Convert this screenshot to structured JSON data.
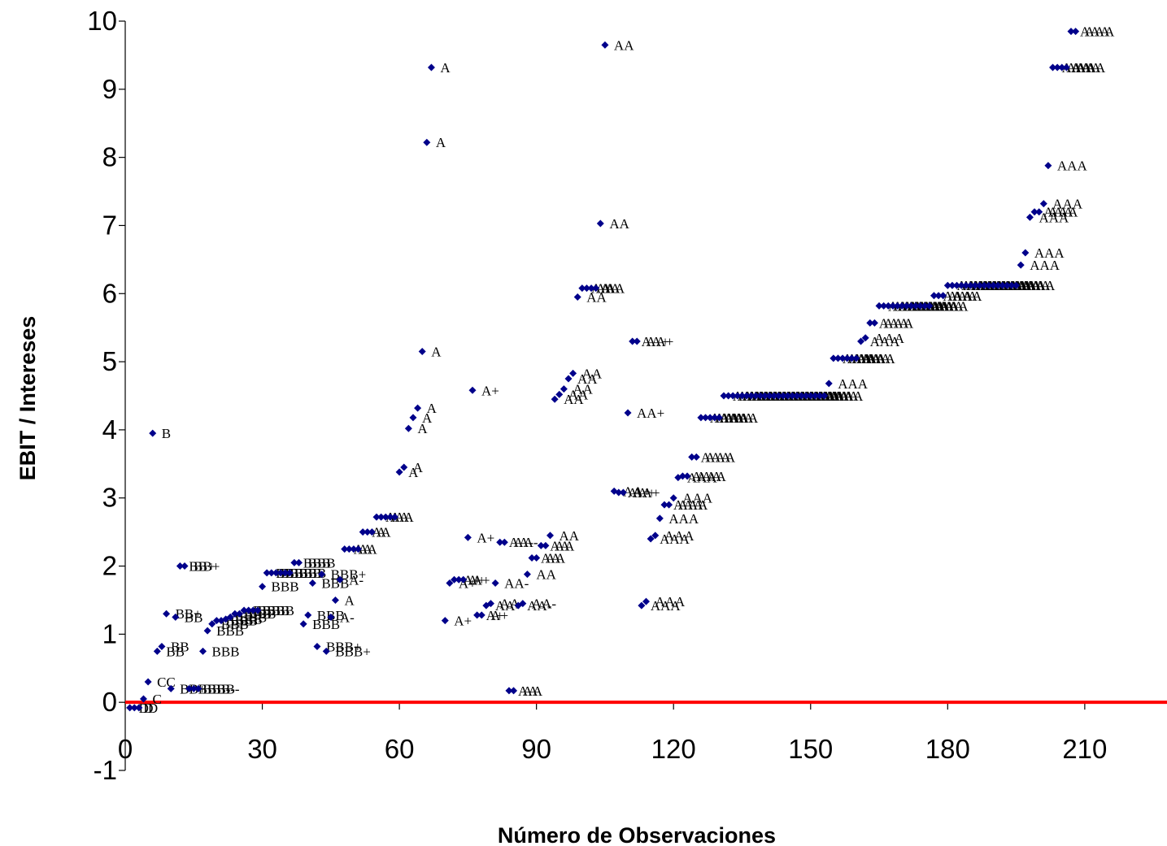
{
  "chart_data": {
    "type": "scatter",
    "title": "",
    "xlabel": "Número de Observaciones",
    "ylabel": "EBIT / Intereses",
    "xlim": [
      0,
      228
    ],
    "ylim": [
      -1,
      10
    ],
    "xticks": [
      0,
      30,
      60,
      90,
      120,
      150,
      180,
      210
    ],
    "yticks": [
      -1,
      0,
      1,
      2,
      3,
      4,
      5,
      6,
      7,
      8,
      9,
      10
    ],
    "grid": false,
    "legend": "none",
    "marker_color": "#00008B",
    "zero_line_color": "#FF0000",
    "points": [
      {
        "x": 1,
        "y": -0.08,
        "label": "D"
      },
      {
        "x": 2,
        "y": -0.08,
        "label": "D"
      },
      {
        "x": 3,
        "y": -0.08,
        "label": "D"
      },
      {
        "x": 4,
        "y": 0.05,
        "label": "C"
      },
      {
        "x": 5,
        "y": 0.3,
        "label": "CC"
      },
      {
        "x": 6,
        "y": 3.95,
        "label": "B"
      },
      {
        "x": 7,
        "y": 0.75,
        "label": "BB"
      },
      {
        "x": 8,
        "y": 0.82,
        "label": "BB"
      },
      {
        "x": 9,
        "y": 1.3,
        "label": "BB+"
      },
      {
        "x": 10,
        "y": 0.2,
        "label": "BB+"
      },
      {
        "x": 11,
        "y": 1.25,
        "label": "BB"
      },
      {
        "x": 12,
        "y": 2.0,
        "label": "BB+"
      },
      {
        "x": 13,
        "y": 2.0,
        "label": "BB+"
      },
      {
        "x": 14,
        "y": 0.2,
        "label": "BBB-"
      },
      {
        "x": 15,
        "y": 0.2,
        "label": "BBB-"
      },
      {
        "x": 16,
        "y": 0.2,
        "label": "BBB-"
      },
      {
        "x": 17,
        "y": 0.75,
        "label": "BBB"
      },
      {
        "x": 18,
        "y": 1.05,
        "label": "BBB"
      },
      {
        "x": 19,
        "y": 1.15,
        "label": "BBB"
      },
      {
        "x": 20,
        "y": 1.2,
        "label": "BBB"
      },
      {
        "x": 21,
        "y": 1.2,
        "label": "BBB"
      },
      {
        "x": 22,
        "y": 1.22,
        "label": "BBB"
      },
      {
        "x": 23,
        "y": 1.25,
        "label": "BBB"
      },
      {
        "x": 24,
        "y": 1.3,
        "label": "BBB"
      },
      {
        "x": 25,
        "y": 1.3,
        "label": "BBB"
      },
      {
        "x": 26,
        "y": 1.35,
        "label": "BBB"
      },
      {
        "x": 27,
        "y": 1.35,
        "label": "BBB"
      },
      {
        "x": 28,
        "y": 1.35,
        "label": "BBB"
      },
      {
        "x": 29,
        "y": 1.35,
        "label": "BBB"
      },
      {
        "x": 30,
        "y": 1.7,
        "label": "BBB"
      },
      {
        "x": 31,
        "y": 1.9,
        "label": "BBB"
      },
      {
        "x": 32,
        "y": 1.9,
        "label": "BBB"
      },
      {
        "x": 33,
        "y": 1.9,
        "label": "BBB"
      },
      {
        "x": 34,
        "y": 1.9,
        "label": "BBB"
      },
      {
        "x": 35,
        "y": 1.9,
        "label": "BBB"
      },
      {
        "x": 36,
        "y": 1.9,
        "label": "BBB"
      },
      {
        "x": 37,
        "y": 2.05,
        "label": "BBB"
      },
      {
        "x": 38,
        "y": 2.05,
        "label": "BBB"
      },
      {
        "x": 39,
        "y": 1.15,
        "label": "BBB"
      },
      {
        "x": 40,
        "y": 1.28,
        "label": "BBB"
      },
      {
        "x": 41,
        "y": 1.75,
        "label": "BBB"
      },
      {
        "x": 42,
        "y": 0.82,
        "label": "BBB+"
      },
      {
        "x": 43,
        "y": 1.88,
        "label": "BBB+"
      },
      {
        "x": 44,
        "y": 0.75,
        "label": "BBB+"
      },
      {
        "x": 45,
        "y": 1.25,
        "label": "A-"
      },
      {
        "x": 46,
        "y": 1.5,
        "label": "A"
      },
      {
        "x": 47,
        "y": 1.8,
        "label": "A-"
      },
      {
        "x": 48,
        "y": 2.25,
        "label": "A"
      },
      {
        "x": 49,
        "y": 2.25,
        "label": "A"
      },
      {
        "x": 50,
        "y": 2.25,
        "label": "A"
      },
      {
        "x": 51,
        "y": 2.25,
        "label": "A"
      },
      {
        "x": 52,
        "y": 2.5,
        "label": "A"
      },
      {
        "x": 53,
        "y": 2.5,
        "label": "A"
      },
      {
        "x": 54,
        "y": 2.5,
        "label": "A"
      },
      {
        "x": 55,
        "y": 2.72,
        "label": "A"
      },
      {
        "x": 56,
        "y": 2.72,
        "label": "A"
      },
      {
        "x": 57,
        "y": 2.72,
        "label": "A"
      },
      {
        "x": 58,
        "y": 2.72,
        "label": "A"
      },
      {
        "x": 59,
        "y": 2.72,
        "label": "A"
      },
      {
        "x": 60,
        "y": 3.38,
        "label": "A"
      },
      {
        "x": 61,
        "y": 3.45,
        "label": "A"
      },
      {
        "x": 62,
        "y": 4.02,
        "label": "A"
      },
      {
        "x": 63,
        "y": 4.18,
        "label": "A"
      },
      {
        "x": 64,
        "y": 4.32,
        "label": "A"
      },
      {
        "x": 65,
        "y": 5.15,
        "label": "A"
      },
      {
        "x": 66,
        "y": 8.22,
        "label": "A"
      },
      {
        "x": 67,
        "y": 9.32,
        "label": "A"
      },
      {
        "x": 70,
        "y": 1.2,
        "label": "A+"
      },
      {
        "x": 71,
        "y": 1.75,
        "label": "A+"
      },
      {
        "x": 72,
        "y": 1.8,
        "label": "A+"
      },
      {
        "x": 73,
        "y": 1.8,
        "label": "A+"
      },
      {
        "x": 74,
        "y": 1.8,
        "label": "A+"
      },
      {
        "x": 75,
        "y": 2.42,
        "label": "A+"
      },
      {
        "x": 76,
        "y": 4.58,
        "label": "A+"
      },
      {
        "x": 77,
        "y": 1.28,
        "label": "A+"
      },
      {
        "x": 78,
        "y": 1.28,
        "label": "A+"
      },
      {
        "x": 79,
        "y": 1.42,
        "label": "AA-"
      },
      {
        "x": 80,
        "y": 1.45,
        "label": "AA-"
      },
      {
        "x": 81,
        "y": 1.75,
        "label": "AA-"
      },
      {
        "x": 82,
        "y": 2.35,
        "label": "AA-"
      },
      {
        "x": 83,
        "y": 2.35,
        "label": "AA-"
      },
      {
        "x": 84,
        "y": 0.17,
        "label": "AA"
      },
      {
        "x": 85,
        "y": 0.17,
        "label": "AA"
      },
      {
        "x": 86,
        "y": 1.42,
        "label": "AA-"
      },
      {
        "x": 87,
        "y": 1.45,
        "label": "AA-"
      },
      {
        "x": 88,
        "y": 1.88,
        "label": "AA"
      },
      {
        "x": 89,
        "y": 2.12,
        "label": "AA"
      },
      {
        "x": 90,
        "y": 2.12,
        "label": "AA"
      },
      {
        "x": 91,
        "y": 2.3,
        "label": "AA"
      },
      {
        "x": 92,
        "y": 2.3,
        "label": "AA"
      },
      {
        "x": 93,
        "y": 2.45,
        "label": "AA"
      },
      {
        "x": 94,
        "y": 4.45,
        "label": "AA"
      },
      {
        "x": 95,
        "y": 4.52,
        "label": "AA"
      },
      {
        "x": 96,
        "y": 4.6,
        "label": "AA"
      },
      {
        "x": 97,
        "y": 4.75,
        "label": "AA"
      },
      {
        "x": 98,
        "y": 4.83,
        "label": "AA"
      },
      {
        "x": 99,
        "y": 5.95,
        "label": "AA"
      },
      {
        "x": 100,
        "y": 6.08,
        "label": "AA"
      },
      {
        "x": 101,
        "y": 6.08,
        "label": "AA"
      },
      {
        "x": 102,
        "y": 6.08,
        "label": "AA"
      },
      {
        "x": 103,
        "y": 6.08,
        "label": "AA"
      },
      {
        "x": 104,
        "y": 7.03,
        "label": "AA"
      },
      {
        "x": 105,
        "y": 9.65,
        "label": "AA"
      },
      {
        "x": 107,
        "y": 3.1,
        "label": "AA+"
      },
      {
        "x": 108,
        "y": 3.08,
        "label": "AA+"
      },
      {
        "x": 109,
        "y": 3.08,
        "label": "AA+"
      },
      {
        "x": 110,
        "y": 4.25,
        "label": "AA+"
      },
      {
        "x": 111,
        "y": 5.3,
        "label": "AA+"
      },
      {
        "x": 112,
        "y": 5.3,
        "label": "AA+"
      },
      {
        "x": 113,
        "y": 1.42,
        "label": "AAA"
      },
      {
        "x": 114,
        "y": 1.48,
        "label": "AAA"
      },
      {
        "x": 115,
        "y": 2.4,
        "label": "AAA"
      },
      {
        "x": 116,
        "y": 2.45,
        "label": "AAA"
      },
      {
        "x": 117,
        "y": 2.7,
        "label": "AAA"
      },
      {
        "x": 118,
        "y": 2.9,
        "label": "AAA"
      },
      {
        "x": 119,
        "y": 2.9,
        "label": "AAA"
      },
      {
        "x": 120,
        "y": 3.0,
        "label": "AAA"
      },
      {
        "x": 121,
        "y": 3.3,
        "label": "AAA"
      },
      {
        "x": 122,
        "y": 3.32,
        "label": "AAA"
      },
      {
        "x": 123,
        "y": 3.32,
        "label": "AAA"
      },
      {
        "x": 124,
        "y": 3.6,
        "label": "AAA"
      },
      {
        "x": 125,
        "y": 3.6,
        "label": "AAA"
      },
      {
        "x": 126,
        "y": 4.18,
        "label": "AAA"
      },
      {
        "x": 127,
        "y": 4.18,
        "label": "AAA"
      },
      {
        "x": 128,
        "y": 4.18,
        "label": "AAA"
      },
      {
        "x": 129,
        "y": 4.18,
        "label": "AAA"
      },
      {
        "x": 130,
        "y": 4.18,
        "label": "AAA"
      },
      {
        "x": 131,
        "y": 4.5,
        "label": "AAA"
      },
      {
        "x": 132,
        "y": 4.5,
        "label": "AAA"
      },
      {
        "x": 133,
        "y": 4.5,
        "label": "AAA"
      },
      {
        "x": 134,
        "y": 4.5,
        "label": "AAA"
      },
      {
        "x": 135,
        "y": 4.5,
        "label": "AAA"
      },
      {
        "x": 136,
        "y": 4.5,
        "label": "AAA"
      },
      {
        "x": 137,
        "y": 4.5,
        "label": "AAA"
      },
      {
        "x": 138,
        "y": 4.5,
        "label": "AAA"
      },
      {
        "x": 139,
        "y": 4.5,
        "label": "AAA"
      },
      {
        "x": 140,
        "y": 4.5,
        "label": "AAA"
      },
      {
        "x": 141,
        "y": 4.5,
        "label": "AAA"
      },
      {
        "x": 142,
        "y": 4.5,
        "label": "AAA"
      },
      {
        "x": 143,
        "y": 4.5,
        "label": "AAA"
      },
      {
        "x": 144,
        "y": 4.5,
        "label": "AAA"
      },
      {
        "x": 145,
        "y": 4.5,
        "label": "AAA"
      },
      {
        "x": 146,
        "y": 4.5,
        "label": "AAA"
      },
      {
        "x": 147,
        "y": 4.5,
        "label": "AAA"
      },
      {
        "x": 148,
        "y": 4.5,
        "label": "AAA"
      },
      {
        "x": 149,
        "y": 4.5,
        "label": "AAA"
      },
      {
        "x": 150,
        "y": 4.5,
        "label": "AAA"
      },
      {
        "x": 151,
        "y": 4.5,
        "label": "AAA"
      },
      {
        "x": 152,
        "y": 4.5,
        "label": "AAA"
      },
      {
        "x": 153,
        "y": 4.5,
        "label": "AAA"
      },
      {
        "x": 154,
        "y": 4.68,
        "label": "AAA"
      },
      {
        "x": 155,
        "y": 5.05,
        "label": "AAA"
      },
      {
        "x": 156,
        "y": 5.05,
        "label": "AAA"
      },
      {
        "x": 157,
        "y": 5.05,
        "label": "AAA"
      },
      {
        "x": 158,
        "y": 5.05,
        "label": "AAA"
      },
      {
        "x": 159,
        "y": 5.05,
        "label": "AAA"
      },
      {
        "x": 160,
        "y": 5.05,
        "label": "AAA"
      },
      {
        "x": 161,
        "y": 5.3,
        "label": "AAA"
      },
      {
        "x": 162,
        "y": 5.35,
        "label": "AAA"
      },
      {
        "x": 163,
        "y": 5.57,
        "label": "AAA"
      },
      {
        "x": 164,
        "y": 5.57,
        "label": "AAA"
      },
      {
        "x": 165,
        "y": 5.82,
        "label": "AAA"
      },
      {
        "x": 166,
        "y": 5.82,
        "label": "AAA"
      },
      {
        "x": 167,
        "y": 5.82,
        "label": "AAA"
      },
      {
        "x": 168,
        "y": 5.82,
        "label": "AAA"
      },
      {
        "x": 169,
        "y": 5.82,
        "label": "AAA"
      },
      {
        "x": 170,
        "y": 5.82,
        "label": "AAA"
      },
      {
        "x": 171,
        "y": 5.82,
        "label": "AAA"
      },
      {
        "x": 172,
        "y": 5.82,
        "label": "AAA"
      },
      {
        "x": 173,
        "y": 5.82,
        "label": "AAA"
      },
      {
        "x": 174,
        "y": 5.82,
        "label": "AAA"
      },
      {
        "x": 175,
        "y": 5.82,
        "label": "AAA"
      },
      {
        "x": 176,
        "y": 5.82,
        "label": "AAA"
      },
      {
        "x": 177,
        "y": 5.97,
        "label": "AAA"
      },
      {
        "x": 178,
        "y": 5.97,
        "label": "AAA"
      },
      {
        "x": 179,
        "y": 5.97,
        "label": "AAA"
      },
      {
        "x": 180,
        "y": 6.12,
        "label": "AAA"
      },
      {
        "x": 181,
        "y": 6.12,
        "label": "AAA"
      },
      {
        "x": 182,
        "y": 6.12,
        "label": "AAA"
      },
      {
        "x": 183,
        "y": 6.12,
        "label": "AAA"
      },
      {
        "x": 184,
        "y": 6.12,
        "label": "AAA"
      },
      {
        "x": 185,
        "y": 6.12,
        "label": "AAA"
      },
      {
        "x": 186,
        "y": 6.12,
        "label": "AAA"
      },
      {
        "x": 187,
        "y": 6.12,
        "label": "AAA"
      },
      {
        "x": 188,
        "y": 6.12,
        "label": "AAA"
      },
      {
        "x": 189,
        "y": 6.12,
        "label": "AAA"
      },
      {
        "x": 190,
        "y": 6.12,
        "label": "AAA"
      },
      {
        "x": 191,
        "y": 6.12,
        "label": "AAA"
      },
      {
        "x": 192,
        "y": 6.12,
        "label": "AAA"
      },
      {
        "x": 193,
        "y": 6.12,
        "label": "AAA"
      },
      {
        "x": 194,
        "y": 6.12,
        "label": "AAA"
      },
      {
        "x": 195,
        "y": 6.12,
        "label": "AAA"
      },
      {
        "x": 196,
        "y": 6.42,
        "label": "AAA"
      },
      {
        "x": 197,
        "y": 6.6,
        "label": "AAA"
      },
      {
        "x": 198,
        "y": 7.12,
        "label": "AAA"
      },
      {
        "x": 199,
        "y": 7.2,
        "label": "AAA"
      },
      {
        "x": 200,
        "y": 7.2,
        "label": "AAA"
      },
      {
        "x": 201,
        "y": 7.32,
        "label": "AAA"
      },
      {
        "x": 202,
        "y": 7.88,
        "label": "AAA"
      },
      {
        "x": 203,
        "y": 9.32,
        "label": "AAA"
      },
      {
        "x": 204,
        "y": 9.32,
        "label": "AAA"
      },
      {
        "x": 205,
        "y": 9.32,
        "label": "AAA"
      },
      {
        "x": 206,
        "y": 9.32,
        "label": "AAA"
      },
      {
        "x": 207,
        "y": 9.85,
        "label": "AAA"
      },
      {
        "x": 208,
        "y": 9.85,
        "label": "AAA"
      }
    ]
  }
}
